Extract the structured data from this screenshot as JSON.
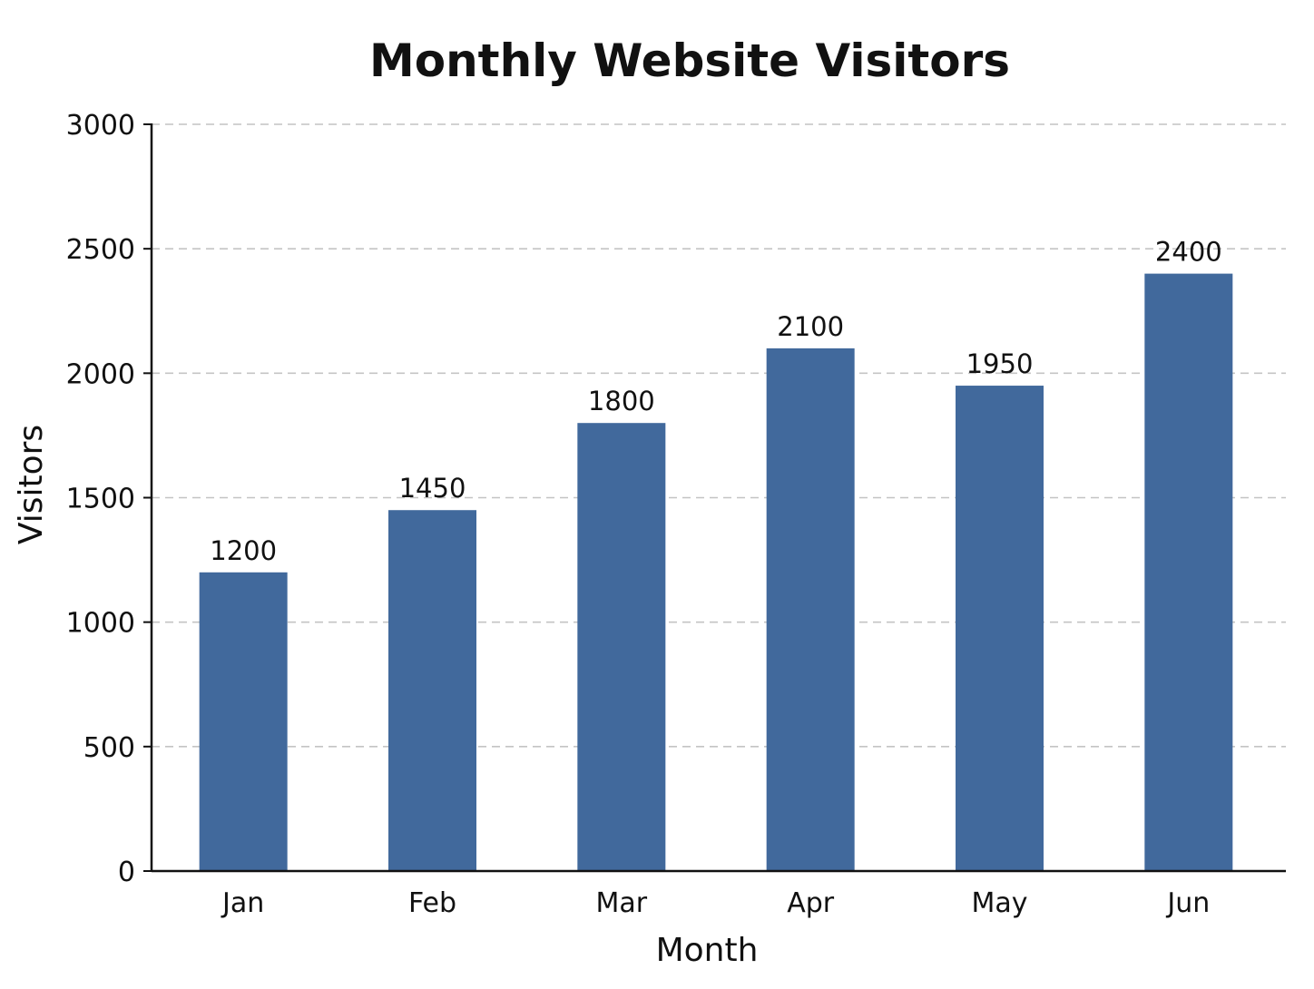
{
  "chart_data": {
    "type": "bar",
    "title": "Monthly Website Visitors",
    "xlabel": "Month",
    "ylabel": "Visitors",
    "categories": [
      "Jan",
      "Feb",
      "Mar",
      "Apr",
      "May",
      "Jun"
    ],
    "values": [
      1200,
      1450,
      1800,
      2100,
      1950,
      2400
    ],
    "ylim": [
      0,
      3000
    ],
    "yticks": [
      0,
      500,
      1000,
      1500,
      2000,
      2500,
      3000
    ],
    "grid": true,
    "grid_style": "dashed",
    "bar_color": "#41699c",
    "data_labels": true
  }
}
